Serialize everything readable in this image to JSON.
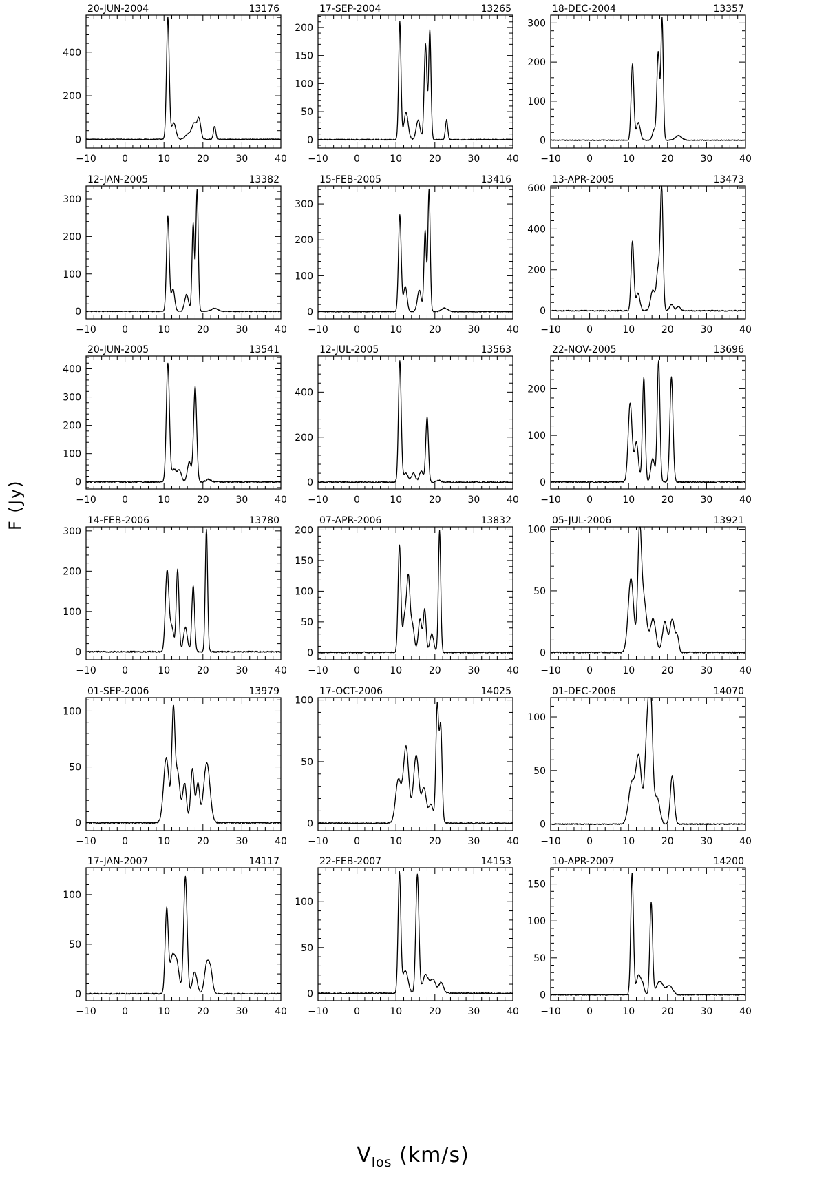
{
  "figure": {
    "ylabel": "F  (Jy)",
    "xlabel_main": "V",
    "xlabel_sub": "los",
    "xlabel_unit": " (km/s)",
    "line_color": "#000000"
  },
  "chart_data": [
    {
      "type": "line",
      "title": "20-JUN-2004",
      "id": "13176",
      "xlim": [
        -10,
        40
      ],
      "ylim": [
        -40,
        570
      ],
      "yticks": [
        0,
        200,
        400
      ],
      "xticks": [
        -10,
        0,
        10,
        20,
        30,
        40
      ],
      "noise": 1.2,
      "peaks": [
        [
          11.0,
          560,
          0.35
        ],
        [
          12.5,
          75,
          0.55
        ],
        [
          16.3,
          25,
          0.8
        ],
        [
          17.8,
          70,
          0.6
        ],
        [
          19.0,
          90,
          0.45
        ],
        [
          23.0,
          60,
          0.3
        ]
      ]
    },
    {
      "type": "line",
      "title": "17-SEP-2004",
      "id": "13265",
      "xlim": [
        -10,
        40
      ],
      "ylim": [
        -15,
        222
      ],
      "yticks": [
        0,
        50,
        100,
        150,
        200
      ],
      "xticks": [
        -10,
        0,
        10,
        20,
        30,
        40
      ],
      "noise": 1.5,
      "peaks": [
        [
          11.0,
          210,
          0.3
        ],
        [
          12.6,
          48,
          0.55
        ],
        [
          15.7,
          35,
          0.5
        ],
        [
          17.6,
          170,
          0.35
        ],
        [
          18.7,
          195,
          0.3
        ],
        [
          23.0,
          35,
          0.3
        ]
      ]
    },
    {
      "type": "line",
      "title": "18-DEC-2004",
      "id": "13357",
      "xlim": [
        -10,
        40
      ],
      "ylim": [
        -20,
        320
      ],
      "yticks": [
        0,
        100,
        200,
        300
      ],
      "xticks": [
        -10,
        0,
        10,
        20,
        30,
        40
      ],
      "noise": 1.2,
      "peaks": [
        [
          11.0,
          195,
          0.35
        ],
        [
          12.5,
          45,
          0.5
        ],
        [
          16.5,
          25,
          0.4
        ],
        [
          17.6,
          225,
          0.35
        ],
        [
          18.6,
          310,
          0.3
        ],
        [
          22.8,
          12,
          0.8
        ]
      ]
    },
    {
      "type": "line",
      "title": "12-JAN-2005",
      "id": "13382",
      "xlim": [
        -10,
        40
      ],
      "ylim": [
        -20,
        335
      ],
      "yticks": [
        0,
        100,
        200,
        300
      ],
      "xticks": [
        -10,
        0,
        10,
        20,
        30,
        40
      ],
      "noise": 1.2,
      "peaks": [
        [
          11.0,
          255,
          0.35
        ],
        [
          12.3,
          60,
          0.45
        ],
        [
          15.8,
          45,
          0.5
        ],
        [
          17.5,
          235,
          0.3
        ],
        [
          18.5,
          325,
          0.3
        ],
        [
          23.0,
          8,
          0.8
        ]
      ]
    },
    {
      "type": "line",
      "title": "15-FEB-2005",
      "id": "13416",
      "xlim": [
        -10,
        40
      ],
      "ylim": [
        -20,
        350
      ],
      "yticks": [
        0,
        100,
        200,
        300
      ],
      "xticks": [
        -10,
        0,
        10,
        20,
        30,
        40
      ],
      "noise": 1.2,
      "peaks": [
        [
          11.0,
          270,
          0.35
        ],
        [
          12.4,
          70,
          0.45
        ],
        [
          16.0,
          60,
          0.5
        ],
        [
          17.5,
          225,
          0.3
        ],
        [
          18.5,
          340,
          0.3
        ],
        [
          22.5,
          10,
          0.8
        ]
      ]
    },
    {
      "type": "line",
      "title": "13-APR-2005",
      "id": "13473",
      "xlim": [
        -10,
        40
      ],
      "ylim": [
        -40,
        610
      ],
      "yticks": [
        0,
        200,
        400,
        600
      ],
      "xticks": [
        -10,
        0,
        10,
        20,
        30,
        40
      ],
      "noise": 1.5,
      "peaks": [
        [
          11.0,
          340,
          0.35
        ],
        [
          12.4,
          85,
          0.5
        ],
        [
          16.2,
          100,
          0.55
        ],
        [
          17.6,
          200,
          0.45
        ],
        [
          18.5,
          590,
          0.35
        ],
        [
          21.0,
          30,
          0.5
        ],
        [
          22.8,
          20,
          0.5
        ]
      ]
    },
    {
      "type": "line",
      "title": "20-JUN-2005",
      "id": "13541",
      "xlim": [
        -10,
        40
      ],
      "ylim": [
        -25,
        445
      ],
      "yticks": [
        0,
        100,
        200,
        300,
        400
      ],
      "xticks": [
        -10,
        0,
        10,
        20,
        30,
        40
      ],
      "noise": 2.0,
      "peaks": [
        [
          11.0,
          420,
          0.4
        ],
        [
          12.6,
          45,
          0.6
        ],
        [
          14.0,
          40,
          0.5
        ],
        [
          16.5,
          70,
          0.5
        ],
        [
          18.0,
          335,
          0.4
        ],
        [
          21.5,
          10,
          0.6
        ]
      ]
    },
    {
      "type": "line",
      "title": "12-JUL-2005",
      "id": "13563",
      "xlim": [
        -10,
        40
      ],
      "ylim": [
        -30,
        560
      ],
      "yticks": [
        0,
        200,
        400
      ],
      "xticks": [
        -10,
        0,
        10,
        20,
        30,
        40
      ],
      "noise": 2.0,
      "peaks": [
        [
          11.0,
          540,
          0.35
        ],
        [
          12.5,
          40,
          0.6
        ],
        [
          14.5,
          40,
          0.5
        ],
        [
          16.5,
          50,
          0.5
        ],
        [
          18.0,
          290,
          0.35
        ],
        [
          21.0,
          8,
          0.6
        ]
      ]
    },
    {
      "type": "line",
      "title": "22-NOV-2005",
      "id": "13696",
      "xlim": [
        -10,
        40
      ],
      "ylim": [
        -15,
        270
      ],
      "yticks": [
        0,
        100,
        200
      ],
      "xticks": [
        -10,
        0,
        10,
        20,
        30,
        40
      ],
      "noise": 2.0,
      "peaks": [
        [
          10.4,
          170,
          0.5
        ],
        [
          12.0,
          85,
          0.5
        ],
        [
          13.9,
          225,
          0.35
        ],
        [
          16.2,
          50,
          0.5
        ],
        [
          17.7,
          260,
          0.35
        ],
        [
          21.0,
          225,
          0.4
        ]
      ]
    },
    {
      "type": "line",
      "title": "14-FEB-2006",
      "id": "13780",
      "xlim": [
        -10,
        40
      ],
      "ylim": [
        -20,
        310
      ],
      "yticks": [
        0,
        100,
        200,
        300
      ],
      "xticks": [
        -10,
        0,
        10,
        20,
        30,
        40
      ],
      "noise": 2.0,
      "peaks": [
        [
          10.8,
          200,
          0.45
        ],
        [
          12.0,
          60,
          0.5
        ],
        [
          13.5,
          205,
          0.35
        ],
        [
          15.5,
          60,
          0.5
        ],
        [
          17.5,
          165,
          0.35
        ],
        [
          20.9,
          305,
          0.3
        ]
      ]
    },
    {
      "type": "line",
      "title": "07-APR-2006",
      "id": "13832",
      "xlim": [
        -10,
        40
      ],
      "ylim": [
        -12,
        205
      ],
      "yticks": [
        0,
        50,
        100,
        150,
        200
      ],
      "xticks": [
        -10,
        0,
        10,
        20,
        30,
        40
      ],
      "noise": 2.0,
      "peaks": [
        [
          10.9,
          175,
          0.35
        ],
        [
          12.3,
          60,
          0.5
        ],
        [
          13.2,
          110,
          0.4
        ],
        [
          14.2,
          45,
          0.5
        ],
        [
          16.2,
          55,
          0.45
        ],
        [
          17.4,
          70,
          0.35
        ],
        [
          19.2,
          30,
          0.5
        ],
        [
          21.2,
          200,
          0.3
        ]
      ]
    },
    {
      "type": "line",
      "title": "05-JUL-2006",
      "id": "13921",
      "xlim": [
        -10,
        40
      ],
      "ylim": [
        -6,
        102
      ],
      "yticks": [
        0,
        50,
        100
      ],
      "xticks": [
        -10,
        0,
        10,
        20,
        30,
        40
      ],
      "noise": 2.0,
      "peaks": [
        [
          10.6,
          60,
          0.7
        ],
        [
          12.8,
          85,
          0.45
        ],
        [
          13.8,
          45,
          0.8
        ],
        [
          16.3,
          27,
          0.7
        ],
        [
          19.3,
          25,
          0.6
        ],
        [
          21.2,
          27,
          0.6
        ],
        [
          22.5,
          12,
          0.4
        ]
      ]
    },
    {
      "type": "line",
      "title": "01-SEP-2006",
      "id": "13979",
      "xlim": [
        -10,
        40
      ],
      "ylim": [
        -7,
        112
      ],
      "yticks": [
        0,
        50,
        100
      ],
      "xticks": [
        -10,
        0,
        10,
        20,
        30,
        40
      ],
      "noise": 2.0,
      "peaks": [
        [
          10.6,
          58,
          0.7
        ],
        [
          12.4,
          95,
          0.4
        ],
        [
          13.5,
          45,
          0.6
        ],
        [
          15.3,
          35,
          0.5
        ],
        [
          17.3,
          48,
          0.45
        ],
        [
          18.7,
          35,
          0.45
        ],
        [
          21.0,
          54,
          0.8
        ]
      ]
    },
    {
      "type": "line",
      "title": "17-OCT-2006",
      "id": "14025",
      "xlim": [
        -10,
        40
      ],
      "ylim": [
        -6,
        102
      ],
      "yticks": [
        0,
        50,
        100
      ],
      "xticks": [
        -10,
        0,
        10,
        20,
        30,
        40
      ],
      "noise": 1.6,
      "peaks": [
        [
          10.6,
          35,
          0.7
        ],
        [
          12.6,
          62,
          0.7
        ],
        [
          15.2,
          55,
          0.7
        ],
        [
          17.2,
          28,
          0.6
        ],
        [
          19.0,
          15,
          0.6
        ],
        [
          20.6,
          95,
          0.35
        ],
        [
          21.5,
          78,
          0.35
        ]
      ]
    },
    {
      "type": "line",
      "title": "01-DEC-2006",
      "id": "14070",
      "xlim": [
        -10,
        40
      ],
      "ylim": [
        -6,
        118
      ],
      "yticks": [
        0,
        50,
        100
      ],
      "xticks": [
        -10,
        0,
        10,
        20,
        30,
        40
      ],
      "noise": 1.6,
      "peaks": [
        [
          10.8,
          38,
          0.8
        ],
        [
          12.6,
          62,
          0.7
        ],
        [
          14.8,
          85,
          0.6
        ],
        [
          15.7,
          100,
          0.5
        ],
        [
          17.3,
          25,
          0.7
        ],
        [
          21.2,
          45,
          0.5
        ]
      ]
    },
    {
      "type": "line",
      "title": "17-JAN-2007",
      "id": "14117",
      "xlim": [
        -10,
        40
      ],
      "ylim": [
        -7,
        127
      ],
      "yticks": [
        0,
        50,
        100
      ],
      "xticks": [
        -10,
        0,
        10,
        20,
        30,
        40
      ],
      "noise": 1.6,
      "peaks": [
        [
          10.7,
          85,
          0.4
        ],
        [
          12.1,
          35,
          0.6
        ],
        [
          13.3,
          30,
          0.6
        ],
        [
          15.5,
          118,
          0.45
        ],
        [
          17.9,
          22,
          0.6
        ],
        [
          21.0,
          30,
          0.6
        ],
        [
          22.0,
          20,
          0.5
        ]
      ]
    },
    {
      "type": "line",
      "title": "22-FEB-2007",
      "id": "14153",
      "xlim": [
        -10,
        40
      ],
      "ylim": [
        -8,
        137
      ],
      "yticks": [
        0,
        50,
        100
      ],
      "xticks": [
        -10,
        0,
        10,
        20,
        30,
        40
      ],
      "noise": 2.0,
      "peaks": [
        [
          10.9,
          130,
          0.35
        ],
        [
          12.4,
          25,
          0.7
        ],
        [
          15.5,
          130,
          0.4
        ],
        [
          17.6,
          20,
          0.7
        ],
        [
          19.5,
          15,
          0.7
        ],
        [
          21.6,
          12,
          0.6
        ]
      ]
    },
    {
      "type": "line",
      "title": "10-APR-2007",
      "id": "14200",
      "xlim": [
        -10,
        40
      ],
      "ylim": [
        -8,
        172
      ],
      "yticks": [
        0,
        50,
        100,
        150
      ],
      "xticks": [
        -10,
        0,
        10,
        20,
        30,
        40
      ],
      "noise": 1.4,
      "peaks": [
        [
          10.9,
          165,
          0.35
        ],
        [
          12.5,
          25,
          0.5
        ],
        [
          13.5,
          15,
          0.5
        ],
        [
          15.8,
          125,
          0.35
        ],
        [
          18.0,
          18,
          0.9
        ],
        [
          20.5,
          12,
          0.8
        ]
      ]
    }
  ]
}
